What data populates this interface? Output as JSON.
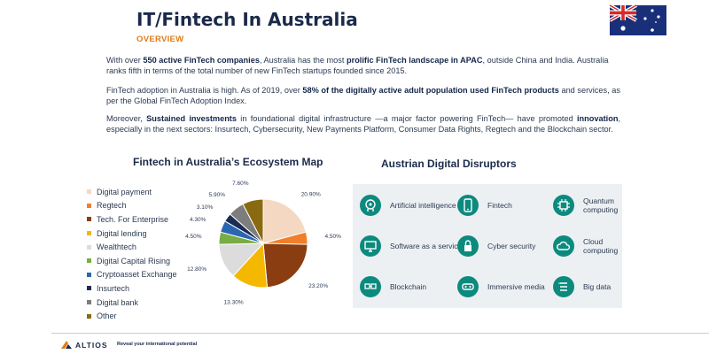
{
  "header": {
    "title": "IT/Fintech In Australia",
    "subtitle": "OVERVIEW",
    "flag_icon": "australia-flag-icon"
  },
  "paragraphs": {
    "p1": {
      "t1": "With over ",
      "b1": "550 active FinTech companies",
      "t2": ", Australia has the most ",
      "b2": "prolific FinTech landscape in APAC",
      "t3": ", outside China and India. Australia ranks fifth in terms of the total number of new FinTech startups founded since 2015."
    },
    "p2": {
      "t1": "FinTech adoption in Australia is high. As of 2019, over ",
      "b1": "58% of the digitally active adult population used FinTech products",
      "t2": " and services, as per the Global  FinTech Adoption Index."
    },
    "p3": {
      "t1": "Moreover, ",
      "b1": "Sustained investments",
      "t2": " in foundational digital infrastructure —a major factor powering FinTech— have promoted ",
      "b2": "innovation",
      "t3": ", especially in the next sectors: Insurtech, Cybersecurity, New Payments Platform, Consumer Data Rights, Regtech and the Blockchain sector."
    }
  },
  "left_section": {
    "title": "Fintech in Australia’s Ecosystem Map"
  },
  "right_section": {
    "title": "Austrian Digital Disruptors"
  },
  "chart_data": {
    "type": "pie",
    "title": "Fintech in Australia’s Ecosystem Map",
    "legend_position": "left",
    "categories": [
      "Digital payment",
      "Regtech",
      "Tech. For Enterprise",
      "Digital lending",
      "Wealthtech",
      "Digital Capital Rising",
      "Cryptoasset Exchange",
      "Insurtech",
      "Digital bank",
      "Other"
    ],
    "values": [
      20.9,
      4.5,
      23.2,
      13.3,
      12.8,
      4.5,
      4.3,
      3.1,
      5.9,
      7.6
    ],
    "labels": [
      "20.90%",
      "4.50%",
      "23.20%",
      "13.30%",
      "12.80%",
      "4.50%",
      "4.30%",
      "3.10%",
      "5.90%",
      "7.60%"
    ],
    "colors": [
      "#f5d8c2",
      "#f07e2a",
      "#8a3d10",
      "#f5b800",
      "#dcdcdc",
      "#78ad45",
      "#2a67b3",
      "#1d2c55",
      "#7d7d7d",
      "#8a6a10"
    ]
  },
  "disruptors": [
    {
      "label": "Artificial intelligence",
      "icon": "ai-head-icon"
    },
    {
      "label": "Fintech",
      "icon": "fintech-phone-icon"
    },
    {
      "label": "Quantum computing",
      "icon": "quantum-chip-icon"
    },
    {
      "label": "Software as a service",
      "icon": "software-monitor-icon"
    },
    {
      "label": "Cyber security",
      "icon": "cyber-lock-icon"
    },
    {
      "label": "Cloud computing",
      "icon": "cloud-icon"
    },
    {
      "label": "Blockchain",
      "icon": "blockchain-icon"
    },
    {
      "label": "Immersive media",
      "icon": "vr-headset-icon"
    },
    {
      "label": "Big data",
      "icon": "big-data-icon"
    }
  ],
  "footer": {
    "logo_text": "ALTIOS",
    "tagline": "Reveal your international potential"
  }
}
